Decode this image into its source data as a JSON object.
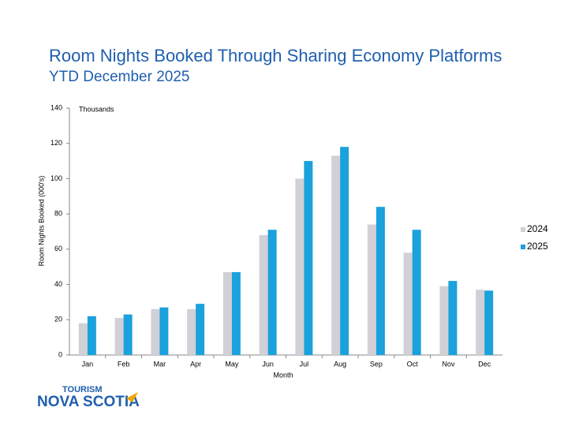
{
  "chart_data": {
    "type": "bar",
    "title": "Room Nights Booked Through Sharing Economy Platforms",
    "subtitle": "YTD December 2025",
    "y_label": "Room Nights Booked (000's)",
    "unit_note": "Thousands",
    "x_label": "Month",
    "categories": [
      "Jan",
      "Feb",
      "Mar",
      "Apr",
      "May",
      "Jun",
      "Jul",
      "Aug",
      "Sep",
      "Oct",
      "Nov",
      "Dec"
    ],
    "series": [
      {
        "name": "2024",
        "color": "#d0d0d6",
        "values": [
          18,
          21,
          26,
          26,
          47,
          68,
          100,
          113,
          74,
          58,
          39,
          37
        ]
      },
      {
        "name": "2025",
        "color": "#1ba1dc",
        "values": [
          22,
          23,
          27,
          29,
          47,
          71,
          110,
          118,
          84,
          71,
          42,
          36.5
        ]
      }
    ],
    "ylim": [
      0,
      140
    ],
    "yticks": [
      0,
      20,
      40,
      60,
      80,
      100,
      120,
      140
    ],
    "grid": false,
    "legend": "right"
  },
  "logo": {
    "line1": "TOURISM",
    "line2": "NOVA SCOTIA"
  }
}
